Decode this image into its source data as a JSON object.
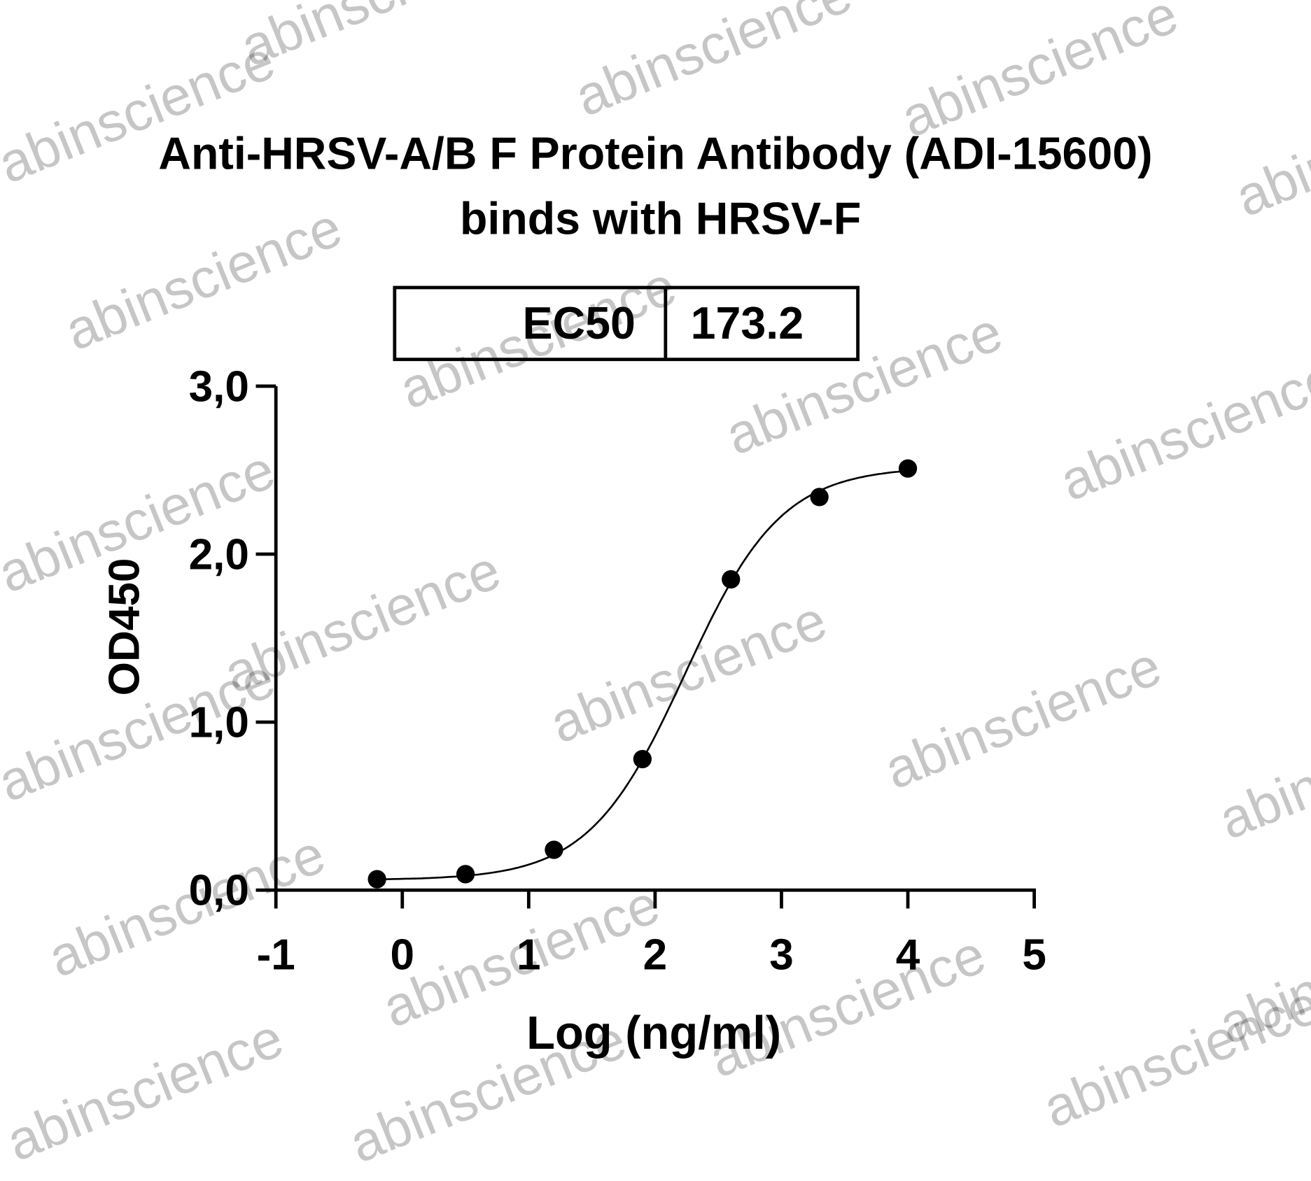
{
  "watermark": "abinscience",
  "chart_data": {
    "type": "scatter",
    "title": "Anti-HRSV-A/B F Protein Antibody (ADI-15600)",
    "subtitle": "binds with HRSV-F",
    "xlabel": "Log (ng/ml)",
    "ylabel": "OD450",
    "xlim": [
      -1,
      5
    ],
    "ylim": [
      0,
      3
    ],
    "xticks": [
      "-1",
      "0",
      "1",
      "2",
      "3",
      "4",
      "5"
    ],
    "yticks": [
      "0,0",
      "1,0",
      "2,0",
      "3,0"
    ],
    "grid": false,
    "legend": "none",
    "table": {
      "label": "EC50",
      "value": "173.2"
    },
    "series": [
      {
        "x": [
          -0.2,
          0.5,
          1.2,
          1.9,
          2.6,
          3.3,
          4.0
        ],
        "y": [
          0.065,
          0.095,
          0.24,
          0.78,
          1.85,
          2.34,
          2.51
        ],
        "fit": {
          "model": "4PL",
          "bottom": 0.06,
          "top": 2.52,
          "logEC50": 2.2386,
          "hill": 1.14
        }
      }
    ],
    "color": "#000000"
  }
}
